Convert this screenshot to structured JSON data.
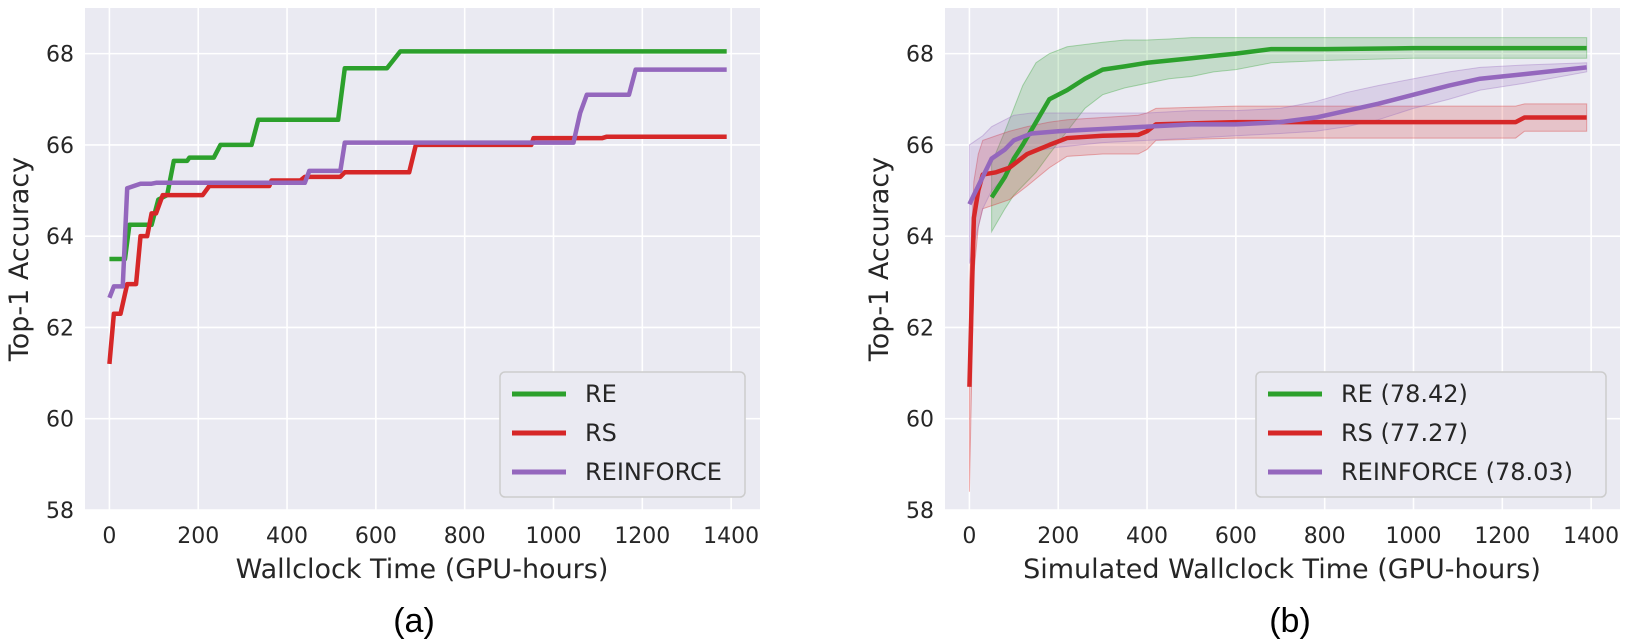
{
  "chart_data": [
    {
      "type": "line",
      "panel_caption": "(a)",
      "xlabel": "Wallclock Time (GPU-hours)",
      "ylabel": "Top-1 Accuracy",
      "xlim": [
        -55,
        1465
      ],
      "ylim": [
        58,
        69
      ],
      "xticks": [
        0,
        200,
        400,
        600,
        800,
        1000,
        1200,
        1400
      ],
      "yticks": [
        58,
        60,
        62,
        64,
        66,
        68
      ],
      "grid": true,
      "legend_position": "bottom-right",
      "series": [
        {
          "name": "RE",
          "legend_label": "RE",
          "color": "#2ca02c",
          "points": [
            [
              0,
              63.5
            ],
            [
              35,
              63.5
            ],
            [
              45,
              64.25
            ],
            [
              80,
              64.25
            ],
            [
              95,
              64.25
            ],
            [
              110,
              64.8
            ],
            [
              130,
              64.9
            ],
            [
              145,
              65.65
            ],
            [
              175,
              65.65
            ],
            [
              180,
              65.72
            ],
            [
              235,
              65.72
            ],
            [
              250,
              66.0
            ],
            [
              320,
              66.0
            ],
            [
              335,
              66.55
            ],
            [
              515,
              66.55
            ],
            [
              530,
              67.68
            ],
            [
              625,
              67.68
            ],
            [
              655,
              68.05
            ],
            [
              1390,
              68.05
            ]
          ]
        },
        {
          "name": "RS",
          "legend_label": "RS",
          "color": "#d62728",
          "points": [
            [
              0,
              61.2
            ],
            [
              10,
              62.3
            ],
            [
              25,
              62.3
            ],
            [
              40,
              62.95
            ],
            [
              60,
              62.95
            ],
            [
              70,
              64.0
            ],
            [
              85,
              64.0
            ],
            [
              95,
              64.5
            ],
            [
              105,
              64.5
            ],
            [
              120,
              64.9
            ],
            [
              210,
              64.9
            ],
            [
              225,
              65.1
            ],
            [
              360,
              65.1
            ],
            [
              365,
              65.22
            ],
            [
              430,
              65.22
            ],
            [
              440,
              65.3
            ],
            [
              520,
              65.3
            ],
            [
              530,
              65.4
            ],
            [
              675,
              65.4
            ],
            [
              690,
              66.0
            ],
            [
              950,
              66.0
            ],
            [
              955,
              66.15
            ],
            [
              1110,
              66.15
            ],
            [
              1120,
              66.18
            ],
            [
              1390,
              66.18
            ]
          ]
        },
        {
          "name": "REINFORCE",
          "legend_label": "REINFORCE",
          "color": "#9467bd",
          "points": [
            [
              0,
              62.65
            ],
            [
              10,
              62.9
            ],
            [
              30,
              62.9
            ],
            [
              40,
              65.05
            ],
            [
              55,
              65.1
            ],
            [
              70,
              65.15
            ],
            [
              95,
              65.15
            ],
            [
              105,
              65.17
            ],
            [
              440,
              65.17
            ],
            [
              450,
              65.43
            ],
            [
              520,
              65.43
            ],
            [
              530,
              66.05
            ],
            [
              1030,
              66.05
            ],
            [
              1045,
              66.05
            ],
            [
              1060,
              66.7
            ],
            [
              1075,
              67.1
            ],
            [
              1170,
              67.1
            ],
            [
              1185,
              67.65
            ],
            [
              1390,
              67.65
            ]
          ]
        }
      ]
    },
    {
      "type": "line",
      "panel_caption": "(b)",
      "xlabel": "Simulated Wallclock Time (GPU-hours)",
      "ylabel": "Top-1 Accuracy",
      "xlim": [
        -55,
        1465
      ],
      "ylim": [
        58,
        69
      ],
      "xticks": [
        0,
        200,
        400,
        600,
        800,
        1000,
        1200,
        1400
      ],
      "yticks": [
        58,
        60,
        62,
        64,
        66,
        68
      ],
      "grid": true,
      "legend_position": "bottom-right",
      "series": [
        {
          "name": "RE",
          "legend_label": "RE (78.42)",
          "color": "#2ca02c",
          "points": [
            [
              50,
              64.85
            ],
            [
              80,
              65.3
            ],
            [
              100,
              65.7
            ],
            [
              120,
              66.0
            ],
            [
              150,
              66.5
            ],
            [
              180,
              67.0
            ],
            [
              220,
              67.2
            ],
            [
              260,
              67.45
            ],
            [
              300,
              67.65
            ],
            [
              350,
              67.72
            ],
            [
              400,
              67.8
            ],
            [
              450,
              67.85
            ],
            [
              500,
              67.9
            ],
            [
              550,
              67.95
            ],
            [
              600,
              68.0
            ],
            [
              680,
              68.1
            ],
            [
              800,
              68.1
            ],
            [
              1000,
              68.12
            ],
            [
              1200,
              68.12
            ],
            [
              1390,
              68.12
            ]
          ],
          "band_upper": [
            [
              50,
              65.6
            ],
            [
              80,
              66.3
            ],
            [
              100,
              66.8
            ],
            [
              120,
              67.3
            ],
            [
              150,
              67.8
            ],
            [
              180,
              68.0
            ],
            [
              220,
              68.15
            ],
            [
              260,
              68.2
            ],
            [
              300,
              68.25
            ],
            [
              350,
              68.3
            ],
            [
              400,
              68.3
            ],
            [
              450,
              68.32
            ],
            [
              500,
              68.35
            ],
            [
              550,
              68.35
            ],
            [
              600,
              68.35
            ],
            [
              680,
              68.35
            ],
            [
              800,
              68.35
            ],
            [
              1000,
              68.35
            ],
            [
              1200,
              68.35
            ],
            [
              1390,
              68.35
            ]
          ],
          "band_lower": [
            [
              50,
              64.1
            ],
            [
              80,
              64.6
            ],
            [
              100,
              64.9
            ],
            [
              120,
              65.1
            ],
            [
              150,
              65.4
            ],
            [
              180,
              65.8
            ],
            [
              220,
              66.3
            ],
            [
              260,
              66.8
            ],
            [
              300,
              67.1
            ],
            [
              350,
              67.25
            ],
            [
              400,
              67.35
            ],
            [
              450,
              67.45
            ],
            [
              500,
              67.5
            ],
            [
              550,
              67.6
            ],
            [
              600,
              67.65
            ],
            [
              680,
              67.8
            ],
            [
              800,
              67.85
            ],
            [
              1000,
              67.9
            ],
            [
              1200,
              67.9
            ],
            [
              1390,
              67.9
            ]
          ]
        },
        {
          "name": "RS",
          "legend_label": "RS (77.27)",
          "color": "#d62728",
          "points": [
            [
              0,
              60.7
            ],
            [
              10,
              64.4
            ],
            [
              20,
              65.0
            ],
            [
              30,
              65.35
            ],
            [
              60,
              65.4
            ],
            [
              90,
              65.5
            ],
            [
              130,
              65.8
            ],
            [
              180,
              66.0
            ],
            [
              220,
              66.15
            ],
            [
              300,
              66.2
            ],
            [
              380,
              66.22
            ],
            [
              400,
              66.3
            ],
            [
              420,
              66.45
            ],
            [
              600,
              66.5
            ],
            [
              800,
              66.5
            ],
            [
              1000,
              66.5
            ],
            [
              1230,
              66.5
            ],
            [
              1250,
              66.6
            ],
            [
              1390,
              66.6
            ]
          ],
          "band_upper": [
            [
              0,
              63.0
            ],
            [
              10,
              65.2
            ],
            [
              20,
              65.8
            ],
            [
              30,
              66.1
            ],
            [
              60,
              66.2
            ],
            [
              90,
              66.3
            ],
            [
              130,
              66.4
            ],
            [
              180,
              66.5
            ],
            [
              220,
              66.55
            ],
            [
              300,
              66.6
            ],
            [
              380,
              66.65
            ],
            [
              400,
              66.7
            ],
            [
              420,
              66.8
            ],
            [
              600,
              66.85
            ],
            [
              800,
              66.85
            ],
            [
              1000,
              66.85
            ],
            [
              1230,
              66.85
            ],
            [
              1250,
              66.9
            ],
            [
              1390,
              66.9
            ]
          ],
          "band_lower": [
            [
              0,
              58.4
            ],
            [
              10,
              63.2
            ],
            [
              20,
              64.2
            ],
            [
              30,
              64.6
            ],
            [
              60,
              64.7
            ],
            [
              90,
              64.8
            ],
            [
              130,
              65.1
            ],
            [
              180,
              65.5
            ],
            [
              220,
              65.75
            ],
            [
              300,
              65.8
            ],
            [
              380,
              65.8
            ],
            [
              400,
              65.9
            ],
            [
              420,
              66.1
            ],
            [
              600,
              66.15
            ],
            [
              800,
              66.15
            ],
            [
              1000,
              66.15
            ],
            [
              1230,
              66.15
            ],
            [
              1250,
              66.3
            ],
            [
              1390,
              66.3
            ]
          ]
        },
        {
          "name": "REINFORCE",
          "legend_label": "REINFORCE (78.03)",
          "color": "#9467bd",
          "points": [
            [
              0,
              64.7
            ],
            [
              15,
              65.0
            ],
            [
              30,
              65.3
            ],
            [
              50,
              65.7
            ],
            [
              80,
              65.9
            ],
            [
              100,
              66.1
            ],
            [
              140,
              66.25
            ],
            [
              200,
              66.3
            ],
            [
              300,
              66.35
            ],
            [
              400,
              66.4
            ],
            [
              500,
              66.45
            ],
            [
              600,
              66.45
            ],
            [
              700,
              66.5
            ],
            [
              780,
              66.6
            ],
            [
              850,
              66.75
            ],
            [
              920,
              66.9
            ],
            [
              1000,
              67.1
            ],
            [
              1080,
              67.3
            ],
            [
              1150,
              67.45
            ],
            [
              1250,
              67.55
            ],
            [
              1390,
              67.7
            ]
          ],
          "band_upper": [
            [
              0,
              66.0
            ],
            [
              15,
              66.1
            ],
            [
              30,
              66.2
            ],
            [
              50,
              66.4
            ],
            [
              80,
              66.55
            ],
            [
              100,
              66.65
            ],
            [
              140,
              66.7
            ],
            [
              200,
              66.7
            ],
            [
              300,
              66.7
            ],
            [
              400,
              66.7
            ],
            [
              500,
              66.75
            ],
            [
              600,
              66.75
            ],
            [
              700,
              66.8
            ],
            [
              780,
              66.95
            ],
            [
              850,
              67.15
            ],
            [
              920,
              67.3
            ],
            [
              1000,
              67.45
            ],
            [
              1080,
              67.6
            ],
            [
              1150,
              67.7
            ],
            [
              1250,
              67.75
            ],
            [
              1390,
              67.8
            ]
          ],
          "band_lower": [
            [
              0,
              63.4
            ],
            [
              15,
              64.0
            ],
            [
              30,
              64.6
            ],
            [
              50,
              65.0
            ],
            [
              80,
              65.3
            ],
            [
              100,
              65.6
            ],
            [
              140,
              65.85
            ],
            [
              200,
              65.95
            ],
            [
              300,
              66.05
            ],
            [
              400,
              66.1
            ],
            [
              500,
              66.15
            ],
            [
              600,
              66.2
            ],
            [
              700,
              66.25
            ],
            [
              780,
              66.3
            ],
            [
              850,
              66.4
            ],
            [
              920,
              66.55
            ],
            [
              1000,
              66.8
            ],
            [
              1080,
              67.0
            ],
            [
              1150,
              67.2
            ],
            [
              1250,
              67.35
            ],
            [
              1390,
              67.6
            ]
          ]
        }
      ]
    }
  ]
}
